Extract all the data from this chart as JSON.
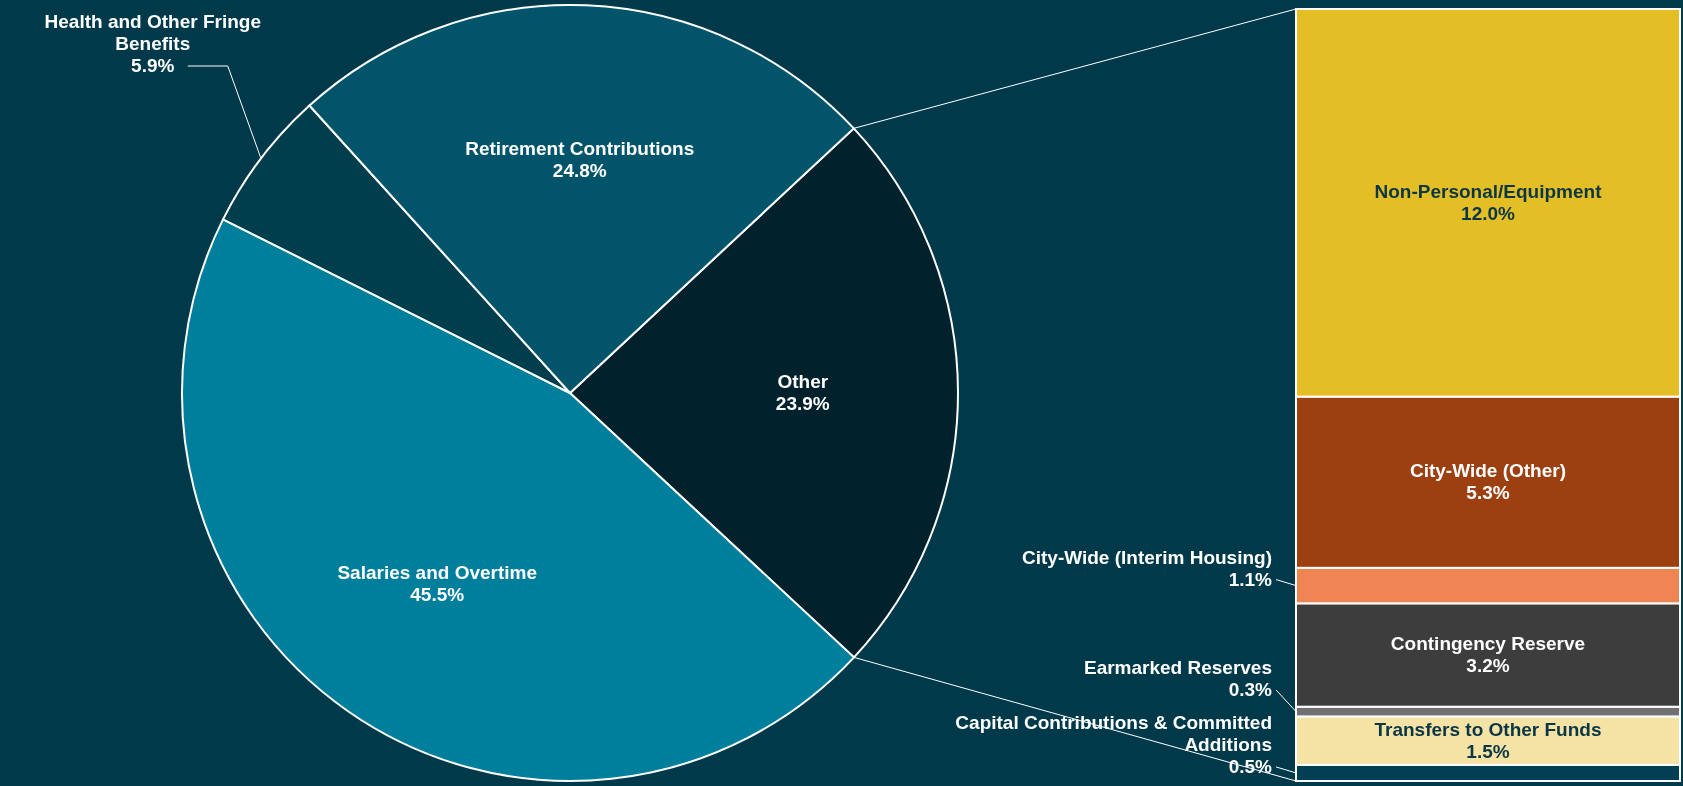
{
  "chart_data": [
    {
      "type": "pie",
      "categories": [
        "Other",
        "Salaries and Overtime",
        "Health and Other Fringe Benefits",
        "Retirement Contributions"
      ],
      "values": [
        23.9,
        45.5,
        5.9,
        24.8
      ],
      "colors": [
        "#01222d",
        "#007f9c",
        "#003d4d",
        "#02546b"
      ],
      "value_labels": [
        "23.9%",
        "45.5%",
        "5.9%",
        "24.8%"
      ]
    },
    {
      "type": "bar",
      "stacked": true,
      "categories": [
        null
      ],
      "series": [
        {
          "name": "Capital Contributions & Committed Additions",
          "color": "#013f55",
          "values": [
            0.5
          ],
          "value_labels": [
            "0.5%"
          ]
        },
        {
          "name": "Transfers to Other Funds",
          "color": "#f5e3a5",
          "values": [
            1.5
          ],
          "value_labels": [
            "1.5%"
          ]
        },
        {
          "name": "Earmarked Reserves",
          "color": "#707070",
          "values": [
            0.3
          ],
          "value_labels": [
            "0.3%"
          ]
        },
        {
          "name": "Contingency Reserve",
          "color": "#3d3d3d",
          "values": [
            3.2
          ],
          "value_labels": [
            "3.2%"
          ]
        },
        {
          "name": "City-Wide (Interim Housing)",
          "color": "#ee8553",
          "values": [
            1.1
          ],
          "value_labels": [
            "1.1%"
          ]
        },
        {
          "name": "City-Wide (Other)",
          "color": "#9c4012",
          "values": [
            5.3
          ],
          "value_labels": [
            "5.3%"
          ]
        },
        {
          "name": "Non-Personal/Equipment",
          "color": "#e4be25",
          "values": [
            12.0
          ],
          "value_labels": [
            "12.0%"
          ]
        }
      ]
    }
  ]
}
